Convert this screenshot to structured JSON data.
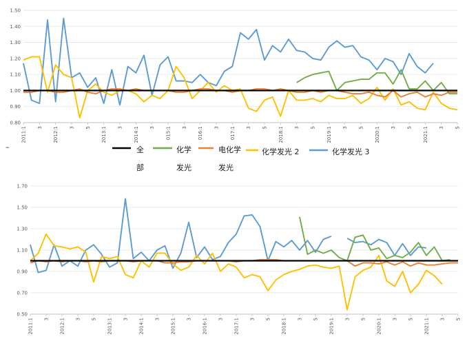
{
  "chart_data": [
    {
      "type": "line",
      "title": "",
      "xlabel": "",
      "ylabel": "",
      "ylim": [
        0.8,
        1.5
      ],
      "yticks": [
        "0.80",
        "0.90",
        "1.00",
        "1.10",
        "1.20",
        "1.30",
        "1.40",
        "1.50"
      ],
      "xticks": [
        {
          "i": 0,
          "label": "2011:1"
        },
        {
          "i": 2,
          "label": "3"
        },
        {
          "i": 4,
          "label": "2012:1"
        },
        {
          "i": 6,
          "label": "3"
        },
        {
          "i": 8,
          "label": "5"
        },
        {
          "i": 10,
          "label": "2013:1"
        },
        {
          "i": 12,
          "label": "3"
        },
        {
          "i": 14,
          "label": "2014:1"
        },
        {
          "i": 16,
          "label": "3"
        },
        {
          "i": 18,
          "label": "015:1"
        },
        {
          "i": 20,
          "label": "3"
        },
        {
          "i": 22,
          "label": "016:1"
        },
        {
          "i": 24,
          "label": "3"
        },
        {
          "i": 26,
          "label": "017:1"
        },
        {
          "i": 28,
          "label": "3"
        },
        {
          "i": 30,
          "label": "5"
        },
        {
          "i": 32,
          "label": "2018:1"
        },
        {
          "i": 34,
          "label": "3"
        },
        {
          "i": 36,
          "label": "5"
        },
        {
          "i": 38,
          "label": "2019:1"
        },
        {
          "i": 40,
          "label": "3"
        },
        {
          "i": 42,
          "label": "5"
        },
        {
          "i": 44,
          "label": "2020:1"
        },
        {
          "i": 46,
          "label": "3"
        },
        {
          "i": 48,
          "label": "5"
        },
        {
          "i": 50,
          "label": "2021:1"
        },
        {
          "i": 52,
          "label": "3"
        },
        {
          "i": 54,
          "label": "5"
        }
      ],
      "n_points": 55,
      "legend": [
        "全部",
        "化学发光",
        "电化学发光",
        "化学发光2",
        "化学发光3"
      ],
      "series": [
        {
          "name": "全部",
          "color": "#000000",
          "values": [
            1.0,
            1.0,
            1.0,
            1.0,
            1.0,
            1.0,
            1.0,
            1.0,
            1.0,
            1.0,
            1.0,
            1.0,
            1.0,
            1.0,
            1.0,
            1.0,
            1.0,
            1.0,
            1.0,
            1.0,
            1.0,
            1.0,
            1.0,
            1.0,
            1.0,
            1.0,
            1.0,
            1.0,
            1.0,
            1.0,
            1.0,
            1.0,
            1.0,
            1.0,
            1.0,
            1.0,
            1.0,
            1.0,
            1.0,
            1.0,
            1.0,
            1.0,
            1.0,
            1.0,
            1.0,
            1.0,
            1.0,
            1.0,
            1.0,
            1.0,
            1.0,
            1.0,
            1.0,
            1.0,
            1.0
          ]
        },
        {
          "name": "化学发光",
          "color": "#70ad47",
          "values": [
            null,
            null,
            null,
            null,
            null,
            null,
            null,
            null,
            null,
            null,
            null,
            null,
            null,
            null,
            null,
            null,
            null,
            null,
            null,
            null,
            null,
            null,
            null,
            null,
            null,
            null,
            null,
            null,
            null,
            null,
            null,
            null,
            null,
            null,
            1.05,
            1.08,
            1.1,
            1.11,
            1.12,
            1.0,
            1.05,
            1.06,
            1.07,
            1.07,
            1.11,
            1.11,
            1.04,
            1.13,
            1.01,
            1.01,
            1.06,
            1.0,
            1.05,
            0.98,
            0.98
          ]
        },
        {
          "name": "电化学发光",
          "color": "#ed7d31",
          "values": [
            0.99,
            0.99,
            1.0,
            1.0,
            0.99,
            0.99,
            1.0,
            1.01,
            0.99,
            0.98,
            1.0,
            1.01,
            1.01,
            1.0,
            1.01,
            1.0,
            1.0,
            1.0,
            1.0,
            0.99,
            0.99,
            1.0,
            1.01,
            1.01,
            1.0,
            1.0,
            0.99,
            1.0,
            1.0,
            1.01,
            1.01,
            1.0,
            1.01,
            1.0,
            0.99,
            0.99,
            1.0,
            0.99,
            1.0,
            1.0,
            0.99,
            0.98,
            0.98,
            0.99,
            0.97,
            0.96,
            1.0,
            0.96,
            0.98,
            0.99,
            0.96,
            0.98,
            0.97,
            0.99,
            0.99
          ]
        },
        {
          "name": "化学发光2",
          "color": "#ffc000",
          "values": [
            1.19,
            1.21,
            1.21,
            0.99,
            1.16,
            1.1,
            1.08,
            0.83,
            1.0,
            1.04,
            0.99,
            0.97,
            1.0,
            1.0,
            0.98,
            0.93,
            0.97,
            0.95,
            1.0,
            1.15,
            1.08,
            0.95,
            1.0,
            1.05,
            0.99,
            1.03,
            1.0,
            1.01,
            0.89,
            0.87,
            0.94,
            0.96,
            0.84,
            1.0,
            0.94,
            0.94,
            0.95,
            0.93,
            0.97,
            0.95,
            0.95,
            0.97,
            0.92,
            0.95,
            1.02,
            0.94,
            1.01,
            0.91,
            0.93,
            0.89,
            0.88,
            0.99,
            0.92,
            0.89,
            0.88
          ]
        },
        {
          "name": "化学发光3",
          "color": "#5b9bd5",
          "values": [
            1.17,
            0.94,
            0.92,
            1.44,
            0.93,
            1.45,
            1.08,
            1.11,
            1.02,
            1.08,
            0.92,
            1.13,
            0.91,
            1.15,
            1.11,
            1.22,
            0.97,
            1.16,
            1.21,
            1.06,
            1.06,
            1.05,
            1.1,
            1.05,
            1.03,
            1.12,
            1.15,
            1.36,
            1.32,
            1.38,
            1.19,
            1.28,
            1.24,
            1.32,
            1.25,
            1.24,
            1.2,
            1.19,
            1.27,
            1.31,
            1.27,
            1.28,
            1.21,
            1.19,
            1.13,
            1.2,
            1.18,
            1.1,
            1.23,
            1.15,
            1.11,
            1.17,
            null,
            null,
            null
          ]
        }
      ]
    },
    {
      "type": "line",
      "title": "",
      "xlabel": "",
      "ylabel": "",
      "ylim": [
        0.5,
        1.7
      ],
      "yticks": [
        "0.50",
        "0.70",
        "0.90",
        "1.10",
        "1.30",
        "1.50",
        "1.70"
      ],
      "xticks": [
        {
          "i": 0,
          "label": "2011:1"
        },
        {
          "i": 2,
          "label": "3"
        },
        {
          "i": 4,
          "label": "2012:1"
        },
        {
          "i": 6,
          "label": "3"
        },
        {
          "i": 8,
          "label": "5"
        },
        {
          "i": 10,
          "label": "2013:1"
        },
        {
          "i": 12,
          "label": "3"
        },
        {
          "i": 14,
          "label": "2014:1"
        },
        {
          "i": 16,
          "label": "3"
        },
        {
          "i": 18,
          "label": "2015:1"
        },
        {
          "i": 20,
          "label": "3"
        },
        {
          "i": 22,
          "label": "2016:1"
        },
        {
          "i": 24,
          "label": "3"
        },
        {
          "i": 26,
          "label": "2017:1"
        },
        {
          "i": 28,
          "label": "3"
        },
        {
          "i": 30,
          "label": "5"
        },
        {
          "i": 32,
          "label": "2018:1"
        },
        {
          "i": 34,
          "label": "3"
        },
        {
          "i": 36,
          "label": "5"
        },
        {
          "i": 38,
          "label": "2019:1"
        },
        {
          "i": 40,
          "label": "3"
        },
        {
          "i": 42,
          "label": "5"
        },
        {
          "i": 44,
          "label": "2020:1"
        },
        {
          "i": 46,
          "label": "3"
        },
        {
          "i": 48,
          "label": "5"
        },
        {
          "i": 50,
          "label": "2021:1"
        },
        {
          "i": 52,
          "label": "3"
        },
        {
          "i": 54,
          "label": "5"
        }
      ],
      "n_points": 55,
      "series": [
        {
          "name": "全部",
          "color": "#000000",
          "values": [
            1.0,
            1.0,
            1.0,
            1.0,
            1.0,
            1.0,
            1.0,
            1.0,
            1.0,
            1.0,
            1.0,
            1.0,
            1.0,
            1.0,
            1.0,
            1.0,
            1.0,
            1.0,
            1.0,
            1.0,
            1.0,
            1.0,
            1.0,
            1.0,
            1.0,
            1.0,
            1.0,
            1.0,
            1.0,
            1.0,
            1.0,
            1.0,
            1.0,
            1.0,
            1.0,
            1.0,
            1.0,
            1.0,
            1.0,
            1.0,
            1.0,
            1.0,
            1.0,
            1.0,
            1.0,
            1.0,
            1.0,
            1.0,
            1.0,
            1.0,
            1.0,
            1.0,
            1.0,
            1.0,
            1.0
          ]
        },
        {
          "name": "化学发光",
          "color": "#70ad47",
          "values": [
            null,
            null,
            null,
            null,
            null,
            null,
            null,
            null,
            null,
            null,
            null,
            null,
            null,
            null,
            null,
            null,
            null,
            null,
            null,
            null,
            null,
            null,
            null,
            null,
            null,
            null,
            null,
            null,
            null,
            null,
            null,
            null,
            null,
            null,
            1.41,
            1.06,
            1.1,
            1.07,
            1.1,
            1.03,
            1.0,
            1.22,
            1.24,
            1.1,
            1.12,
            1.02,
            1.05,
            1.03,
            1.08,
            1.17,
            1.05,
            1.13,
            1.0,
            1.01,
            null
          ]
        },
        {
          "name": "电化学发光",
          "color": "#ed7d31",
          "values": [
            0.98,
            1.0,
            0.99,
            1.0,
            0.99,
            1.0,
            1.0,
            0.99,
            1.0,
            0.99,
            1.0,
            1.0,
            1.0,
            0.99,
            1.0,
            1.0,
            1.0,
            0.98,
            0.98,
            0.99,
            0.99,
            1.0,
            1.0,
            1.0,
            1.0,
            1.0,
            0.99,
            1.0,
            1.0,
            1.01,
            1.01,
            1.01,
            1.0,
            1.0,
            1.0,
            1.0,
            1.0,
            1.0,
            1.0,
            1.0,
            1.0,
            0.95,
            0.98,
            0.98,
            0.97,
            0.99,
            0.96,
            0.99,
            0.95,
            0.98,
            0.96,
            0.96,
            0.97,
            0.98,
            0.98
          ]
        },
        {
          "name": "化学发光2",
          "color": "#ffc000",
          "values": [
            1.0,
            1.07,
            1.25,
            1.14,
            1.13,
            1.11,
            1.13,
            1.08,
            0.8,
            1.04,
            1.02,
            1.04,
            0.87,
            0.84,
            1.0,
            0.94,
            1.07,
            1.07,
            0.97,
            0.91,
            0.94,
            1.05,
            0.97,
            1.07,
            0.9,
            0.97,
            0.94,
            0.84,
            0.87,
            0.85,
            0.72,
            0.82,
            0.87,
            0.9,
            0.92,
            0.95,
            0.96,
            0.94,
            0.93,
            0.95,
            0.54,
            0.85,
            0.91,
            0.94,
            1.05,
            0.81,
            0.76,
            0.9,
            0.7,
            0.78,
            0.91,
            0.86,
            0.78,
            null,
            null
          ]
        },
        {
          "name": "化学发光3",
          "color": "#5b9bd5",
          "values": [
            1.15,
            0.89,
            0.91,
            1.15,
            0.95,
            1.0,
            0.95,
            1.1,
            1.15,
            1.06,
            0.94,
            0.98,
            1.58,
            1.02,
            1.08,
            1.0,
            1.1,
            1.14,
            0.93,
            1.07,
            1.36,
            1.03,
            1.13,
            1.01,
            1.04,
            1.17,
            1.25,
            1.42,
            1.43,
            1.32,
            1.0,
            1.18,
            1.13,
            1.19,
            1.1,
            1.19,
            1.08,
            1.2,
            1.23,
            null,
            1.21,
            1.17,
            1.18,
            1.15,
            1.2,
            1.17,
            1.05,
            1.16,
            1.05,
            1.13,
            1.12,
            null,
            null,
            null,
            null
          ]
        }
      ]
    }
  ],
  "legend_labels": {
    "all_line1": "全",
    "all_line2": "部",
    "chem_line1": "化学",
    "chem_line2": "发光",
    "echem_line1": "电化学",
    "echem_line2": "发光",
    "chem2": "化学发光 2",
    "chem3": "化学发光 3",
    "dash": "–"
  }
}
